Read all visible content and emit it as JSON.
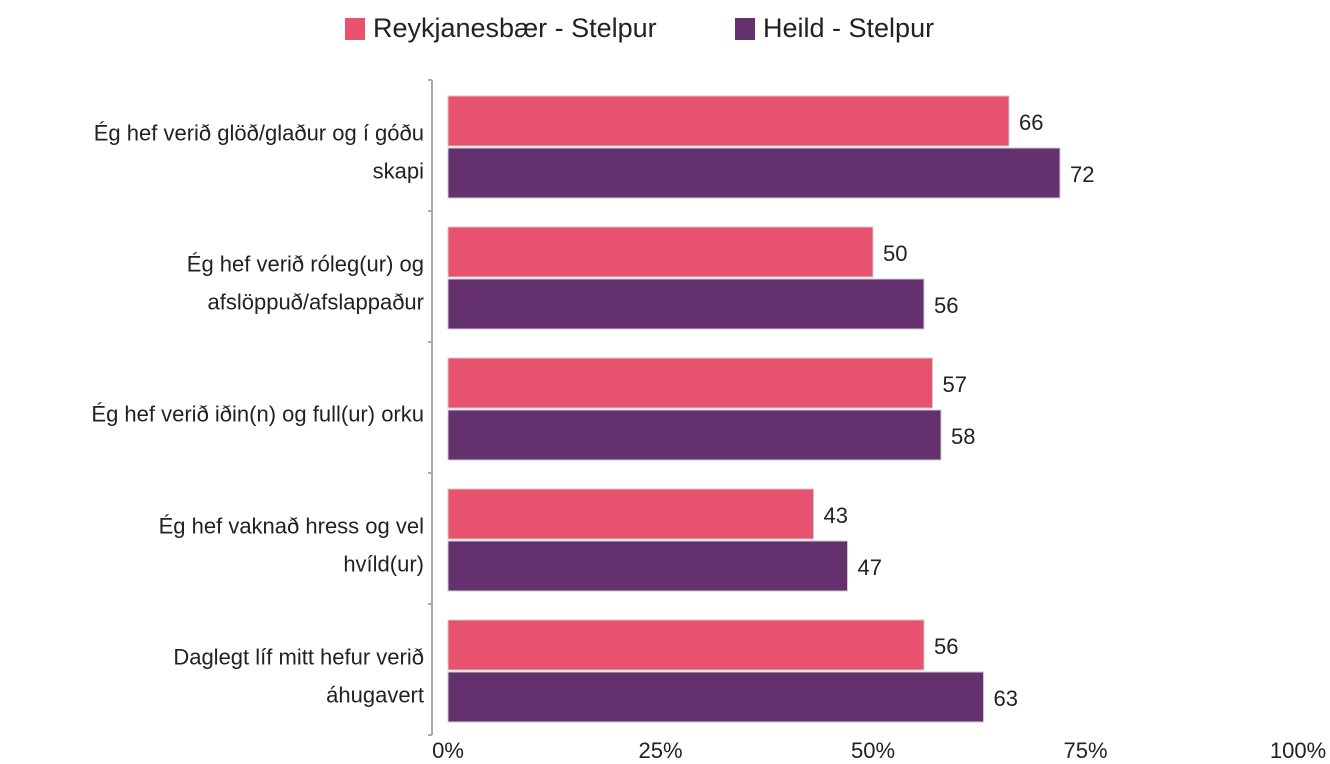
{
  "chart_data": {
    "type": "hbar",
    "categories": [
      [
        "Ég hef verið glöð/glaður og í góðu",
        "skapi"
      ],
      [
        "Ég hef verið róleg(ur) og",
        "afslöppuð/afslappaður"
      ],
      [
        "Ég hef verið iðin(n) og full(ur) orku"
      ],
      [
        "Ég hef vaknað hress og vel",
        "hvíld(ur)"
      ],
      [
        "Daglegt líf mitt hefur verið",
        "áhugavert"
      ]
    ],
    "series": [
      {
        "name": "Reykjanesbær - Stelpur",
        "color": "#e8526e",
        "values": [
          66,
          50,
          57,
          43,
          56
        ]
      },
      {
        "name": "Heild - Stelpur",
        "color": "#64306e",
        "values": [
          72,
          56,
          58,
          47,
          63
        ]
      }
    ],
    "xlim": [
      0,
      100
    ],
    "xticks": [
      {
        "value": 0,
        "label": "0%"
      },
      {
        "value": 25,
        "label": "25%"
      },
      {
        "value": 50,
        "label": "50%"
      },
      {
        "value": 75,
        "label": "75%"
      },
      {
        "value": 100,
        "label": "100%"
      }
    ],
    "legend": "top"
  }
}
